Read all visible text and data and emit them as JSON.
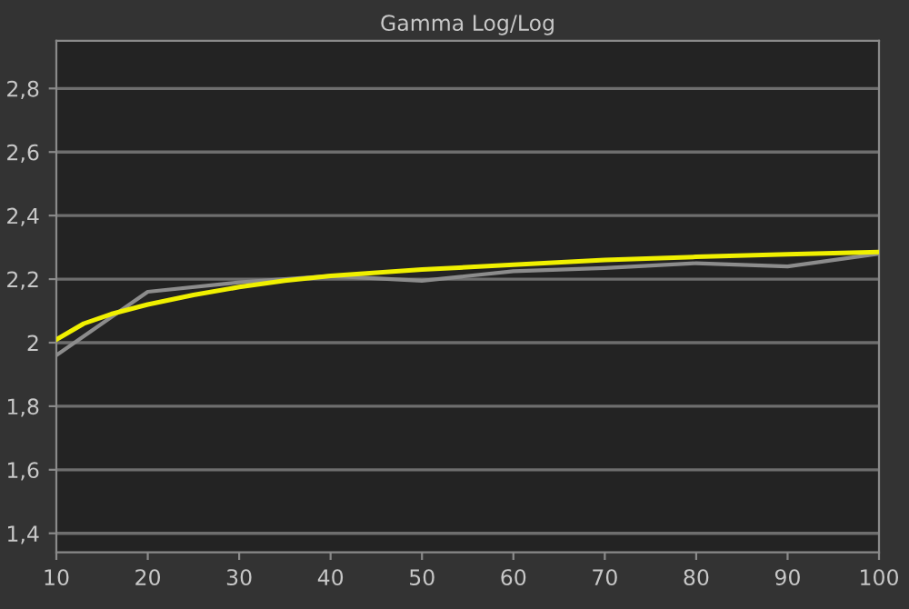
{
  "chart_data": {
    "type": "line",
    "title": "Gamma Log/Log",
    "x": [
      10,
      20,
      30,
      40,
      50,
      60,
      70,
      80,
      90,
      100
    ],
    "series": [
      {
        "color": "#8c8c8c",
        "values": [
          1.96,
          2.16,
          2.19,
          2.21,
          2.195,
          2.225,
          2.235,
          2.25,
          2.24,
          2.28
        ]
      },
      {
        "color": "#f0f000",
        "x": [
          10,
          13,
          16,
          20,
          25,
          30,
          35,
          40,
          50,
          60,
          70,
          80,
          90,
          100
        ],
        "values": [
          2.01,
          2.06,
          2.09,
          2.12,
          2.15,
          2.175,
          2.195,
          2.21,
          2.23,
          2.245,
          2.26,
          2.27,
          2.278,
          2.285
        ]
      }
    ],
    "xlim": [
      10,
      100
    ],
    "ylim": [
      1.34,
      2.95
    ],
    "xticks": [
      10,
      20,
      30,
      40,
      50,
      60,
      70,
      80,
      90,
      100
    ],
    "yticks": [
      {
        "value": 1.4,
        "label": "1,4"
      },
      {
        "value": 1.6,
        "label": "1,6"
      },
      {
        "value": 1.8,
        "label": "1,8"
      },
      {
        "value": 2,
        "label": "2"
      },
      {
        "value": 2.2,
        "label": "2,2"
      },
      {
        "value": 2.4,
        "label": "2,4"
      },
      {
        "value": 2.6,
        "label": "2,6"
      },
      {
        "value": 2.8,
        "label": "2,8"
      }
    ],
    "grid": "y",
    "legend": false,
    "marker": "none",
    "line_style": "solid"
  }
}
